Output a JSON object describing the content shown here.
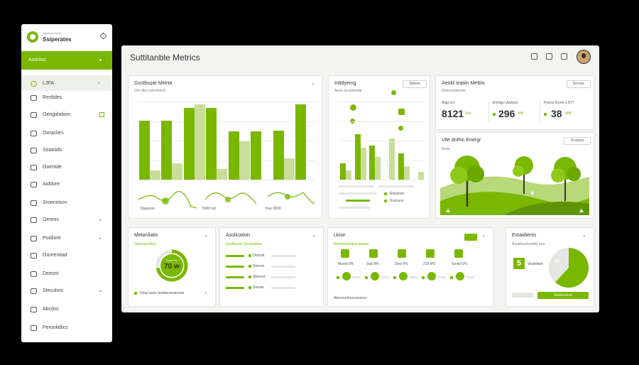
{
  "sidebar": {
    "subtitle": "Ssuosocoosos",
    "title": "Ssiperates",
    "active_label": "Asonloc",
    "items": [
      {
        "label": "LJFA",
        "icon": "leaf-icon"
      },
      {
        "label": "Reolides",
        "icon": "list-icon"
      },
      {
        "label": "Oengidatiion",
        "icon": "grid-icon"
      },
      {
        "label": "Ooraclies",
        "icon": "chart-icon"
      },
      {
        "label": "Soatriids",
        "icon": "doc-icon"
      },
      {
        "label": "Ooentde",
        "icon": "doc-icon"
      },
      {
        "label": "Aiddore",
        "icon": "bolt-icon"
      },
      {
        "label": "Sroenntum",
        "icon": "globe-icon"
      },
      {
        "label": "Oereos",
        "icon": "folder-icon"
      },
      {
        "label": "Puidiore",
        "icon": "file-icon"
      },
      {
        "label": "Oonrentiad",
        "icon": "target-icon"
      },
      {
        "label": "Deeont",
        "icon": "doc-icon"
      },
      {
        "label": "Stecolors",
        "icon": "gear-icon"
      },
      {
        "label": "Abcilos",
        "icon": "book-icon"
      },
      {
        "label": "Peroolidlics",
        "icon": "doc-icon"
      }
    ]
  },
  "main": {
    "title": "Suttitanble Metrics"
  },
  "card1": {
    "title": "Gustbupie Melrta",
    "subtitle": "Oor dbco brochoroll",
    "mini_labels": [
      "1Sasoois",
      "5000 ool",
      "Year 0000"
    ]
  },
  "card2": {
    "title": "Inttdyeing",
    "subtitle": "Aeoo accentoiola",
    "button": "Sbleoe",
    "leg1": "Rleoiiiom",
    "leg2": "Soocuos"
  },
  "card3": {
    "title": "Aeold Ieatiin Mettiis",
    "subtitle": "Dtarcocnterons",
    "button": "Sorooe",
    "stats": [
      {
        "label": "Aiqg ocf",
        "value": "8121",
        "unit": "llne"
      },
      {
        "label": "Ererlgy Uisopes",
        "value": "296",
        "unit": "kW"
      },
      {
        "label": "Peooo tlrorre s 877",
        "value": "38",
        "unit": "MW"
      }
    ]
  },
  "card4": {
    "title": "Vite dnthic Energr",
    "subtitle": "Eruls",
    "button": "Droooos"
  },
  "card5": {
    "title": "Metanliatis",
    "subtitle": "Ooncusesitoo",
    "gauge_top": "Boad PV",
    "gauge_value": "70 w",
    "footer": "Gtop lasoe teolaecemarsiea"
  },
  "card6": {
    "title": "Asolication",
    "subtitle": "Sooflasore Scoloatition",
    "rows": [
      "Ooorsd",
      "Denner",
      "Sboorst",
      "Soruiie"
    ]
  },
  "card7": {
    "title": "Lkise",
    "subtitle": "Nrdoonlonianccosiaoe",
    "values": [
      "Muste 8%",
      "Sub 9%",
      "Stns 9%",
      "216 9%",
      "Sooiol 9%"
    ],
    "footer": "Wsrenoritoorvonsoor"
  },
  "card8": {
    "title": "Extaidients",
    "subtitle": "Aouiebusisoeldo luot",
    "metric": "5",
    "metric_label": "Veaniibon",
    "pie_label": "86",
    "button": "Rooloorloni"
  },
  "chart_data": [
    {
      "type": "bar",
      "title": "Gustbupie Melrta",
      "series": [
        {
          "values": [
            78,
            78,
            95,
            95,
            64,
            64,
            65,
            100
          ]
        },
        {
          "values": [
            12,
            22,
            100,
            14,
            51,
            0,
            28,
            0
          ]
        }
      ],
      "ylim": [
        0,
        100
      ],
      "grid": true
    },
    {
      "type": "bar",
      "title": "Inttdyeing",
      "series": [
        {
          "values": [
            22,
            60,
            45,
            0,
            35,
            0
          ]
        },
        {
          "values": [
            12,
            42,
            30,
            55,
            18,
            10
          ]
        }
      ],
      "ylim": [
        0,
        100
      ],
      "grid": true
    },
    {
      "type": "pie",
      "title": "Extaidients",
      "values": [
        62,
        38
      ]
    }
  ],
  "colors": {
    "accent": "#7ab800",
    "light_accent": "#c9de9a"
  }
}
